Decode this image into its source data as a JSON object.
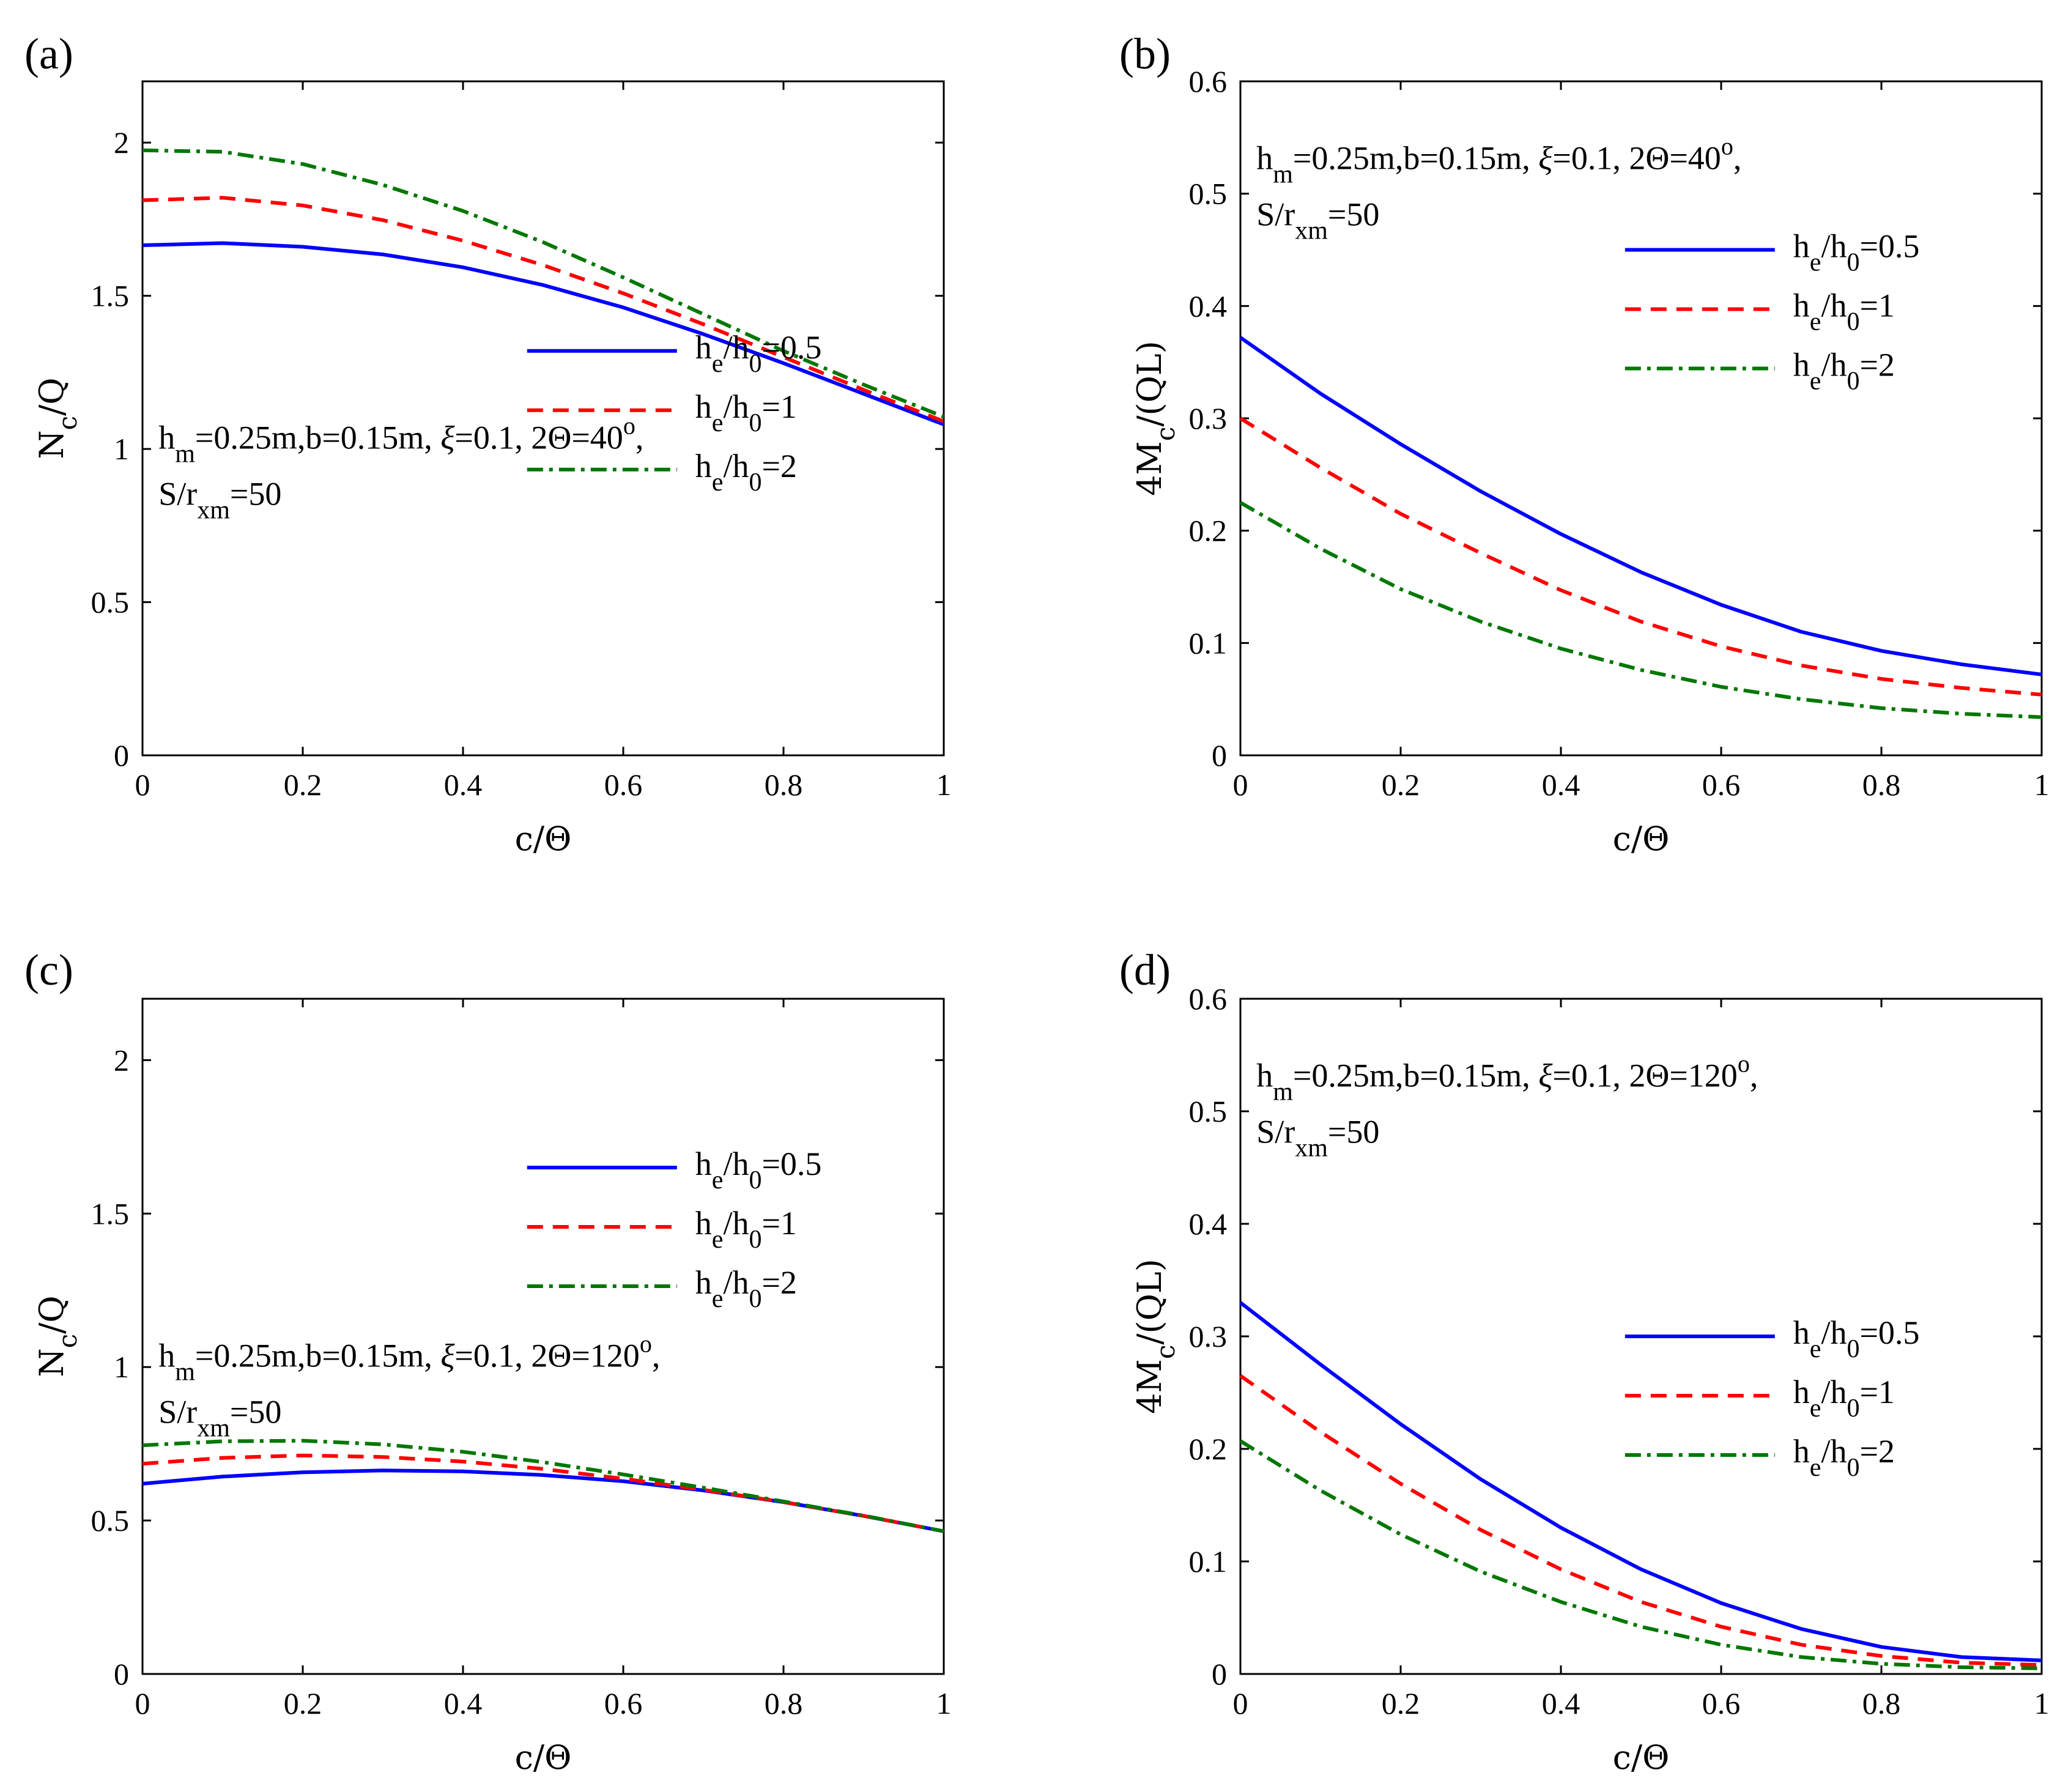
{
  "figure": {
    "description_free": true
  },
  "colors": {
    "s05": "#0000ff",
    "s1": "#ff0000",
    "s2": "#007700"
  },
  "chart_data": [
    {
      "panel": "(a)",
      "type": "line",
      "xlabel_main": "c",
      "xlabel_sub": "/Θ",
      "ylabel_main": "N",
      "ylabel_sub": "c",
      "ylabel_tail": "/Q",
      "xlim": [
        0,
        1
      ],
      "ylim": [
        0,
        2.2
      ],
      "xticks": [
        0,
        0.2,
        0.4,
        0.6,
        0.8,
        1
      ],
      "xtick_labels": [
        "0",
        "0.2",
        "0.4",
        "0.6",
        "0.8",
        "1"
      ],
      "yticks": [
        0,
        0.5,
        1,
        1.5,
        2
      ],
      "ytick_labels": [
        "0",
        "0.5",
        "1",
        "1.5",
        "2"
      ],
      "annotation": {
        "line1": [
          "h",
          "m",
          "=0.25m,b=0.15m, ",
          "ξ",
          "=0.1, 2Θ=40",
          "o",
          ","
        ],
        "line2": [
          "S/",
          "r",
          "xm",
          "=50"
        ],
        "position": "middle-left"
      },
      "legend_position": "middle-right",
      "x": [
        0,
        0.1,
        0.2,
        0.3,
        0.4,
        0.5,
        0.6,
        0.7,
        0.8,
        0.9,
        1.0
      ],
      "series": [
        {
          "name": "h_e/h_0=0.5",
          "legend": [
            "h",
            "e",
            "/h",
            "0",
            "=0.5"
          ],
          "style": "solid",
          "color_key": "s05",
          "values": [
            1.665,
            1.672,
            1.66,
            1.635,
            1.593,
            1.535,
            1.462,
            1.375,
            1.28,
            1.18,
            1.08
          ]
        },
        {
          "name": "h_e/h_0=1",
          "legend": [
            "h",
            "e",
            "/h",
            "0",
            "=1"
          ],
          "style": "dashed",
          "color_key": "s1",
          "values": [
            1.812,
            1.82,
            1.795,
            1.747,
            1.68,
            1.6,
            1.508,
            1.407,
            1.3,
            1.193,
            1.09
          ]
        },
        {
          "name": "h_e/h_0=2",
          "legend": [
            "h",
            "e",
            "/h",
            "0",
            "=2"
          ],
          "style": "dashdot",
          "color_key": "s2",
          "values": [
            1.975,
            1.97,
            1.93,
            1.862,
            1.777,
            1.675,
            1.56,
            1.44,
            1.32,
            1.21,
            1.105
          ]
        }
      ]
    },
    {
      "panel": "(b)",
      "type": "line",
      "xlabel_main": "c",
      "xlabel_sub": "/Θ",
      "ylabel_main": "4M",
      "ylabel_sub": "c",
      "ylabel_tail": "/(QL)",
      "xlim": [
        0,
        1
      ],
      "ylim": [
        0,
        0.6
      ],
      "xticks": [
        0,
        0.2,
        0.4,
        0.6,
        0.8,
        1
      ],
      "xtick_labels": [
        "0",
        "0.2",
        "0.4",
        "0.6",
        "0.8",
        "1"
      ],
      "yticks": [
        0,
        0.1,
        0.2,
        0.3,
        0.4,
        0.5,
        0.6
      ],
      "ytick_labels": [
        "0",
        "0.1",
        "0.2",
        "0.3",
        "0.4",
        "0.5",
        "0.6"
      ],
      "annotation": {
        "line1": [
          "h",
          "m",
          "=0.25m,b=0.15m, ",
          "ξ",
          "=0.1, 2Θ=40",
          "o",
          ","
        ],
        "line2": [
          "S/",
          "r",
          "xm",
          "=50"
        ],
        "position": "top-left"
      },
      "legend_position": "upper-right",
      "x": [
        0,
        0.1,
        0.2,
        0.3,
        0.4,
        0.5,
        0.6,
        0.7,
        0.8,
        0.9,
        1.0
      ],
      "series": [
        {
          "name": "h_e/h_0=0.5",
          "legend": [
            "h",
            "e",
            "/h",
            "0",
            "=0.5"
          ],
          "style": "solid",
          "color_key": "s05",
          "values": [
            0.372,
            0.322,
            0.277,
            0.235,
            0.197,
            0.163,
            0.134,
            0.11,
            0.093,
            0.081,
            0.072
          ]
        },
        {
          "name": "h_e/h_0=1",
          "legend": [
            "h",
            "e",
            "/h",
            "0",
            "=1"
          ],
          "style": "dashed",
          "color_key": "s1",
          "values": [
            0.3,
            0.256,
            0.215,
            0.18,
            0.147,
            0.119,
            0.097,
            0.08,
            0.068,
            0.06,
            0.054
          ]
        },
        {
          "name": "h_e/h_0=2",
          "legend": [
            "h",
            "e",
            "/h",
            "0",
            "=2"
          ],
          "style": "dashdot",
          "color_key": "s2",
          "values": [
            0.225,
            0.184,
            0.148,
            0.119,
            0.095,
            0.076,
            0.061,
            0.05,
            0.042,
            0.037,
            0.034
          ]
        }
      ]
    },
    {
      "panel": "(c)",
      "type": "line",
      "xlabel_main": "c",
      "xlabel_sub": "/Θ",
      "ylabel_main": "N",
      "ylabel_sub": "c",
      "ylabel_tail": "/Q",
      "xlim": [
        0,
        1
      ],
      "ylim": [
        0,
        2.2
      ],
      "xticks": [
        0,
        0.2,
        0.4,
        0.6,
        0.8,
        1
      ],
      "xtick_labels": [
        "0",
        "0.2",
        "0.4",
        "0.6",
        "0.8",
        "1"
      ],
      "yticks": [
        0,
        0.5,
        1,
        1.5,
        2
      ],
      "ytick_labels": [
        "0",
        "0.5",
        "1",
        "1.5",
        "2"
      ],
      "annotation": {
        "line1": [
          "h",
          "m",
          "=0.25m,b=0.15m, ",
          "ξ",
          "=0.1, 2Θ=120",
          "o",
          ","
        ],
        "line2": [
          "S/",
          "r",
          "xm",
          "=50"
        ],
        "position": "middle-left"
      },
      "legend_position": "upper-right",
      "x": [
        0,
        0.1,
        0.2,
        0.3,
        0.4,
        0.5,
        0.6,
        0.7,
        0.8,
        0.9,
        1.0
      ],
      "series": [
        {
          "name": "h_e/h_0=0.5",
          "legend": [
            "h",
            "e",
            "/h",
            "0",
            "=0.5"
          ],
          "style": "solid",
          "color_key": "s05",
          "values": [
            0.62,
            0.643,
            0.657,
            0.663,
            0.66,
            0.648,
            0.628,
            0.598,
            0.56,
            0.515,
            0.465
          ]
        },
        {
          "name": "h_e/h_0=1",
          "legend": [
            "h",
            "e",
            "/h",
            "0",
            "=1"
          ],
          "style": "dashed",
          "color_key": "s1",
          "values": [
            0.685,
            0.704,
            0.712,
            0.707,
            0.692,
            0.668,
            0.636,
            0.6,
            0.56,
            0.515,
            0.465
          ]
        },
        {
          "name": "h_e/h_0=2",
          "legend": [
            "h",
            "e",
            "/h",
            "0",
            "=2"
          ],
          "style": "dashdot",
          "color_key": "s2",
          "values": [
            0.745,
            0.758,
            0.76,
            0.748,
            0.724,
            0.69,
            0.65,
            0.607,
            0.562,
            0.516,
            0.465
          ]
        }
      ]
    },
    {
      "panel": "(d)",
      "type": "line",
      "xlabel_main": "c",
      "xlabel_sub": "/Θ",
      "ylabel_main": "4M",
      "ylabel_sub": "c",
      "ylabel_tail": "/(QL)",
      "xlim": [
        0,
        1
      ],
      "ylim": [
        0,
        0.6
      ],
      "xticks": [
        0,
        0.2,
        0.4,
        0.6,
        0.8,
        1
      ],
      "xtick_labels": [
        "0",
        "0.2",
        "0.4",
        "0.6",
        "0.8",
        "1"
      ],
      "yticks": [
        0,
        0.1,
        0.2,
        0.3,
        0.4,
        0.5,
        0.6
      ],
      "ytick_labels": [
        "0",
        "0.1",
        "0.2",
        "0.3",
        "0.4",
        "0.5",
        "0.6"
      ],
      "annotation": {
        "line1": [
          "h",
          "m",
          "=0.25m,b=0.15m, ",
          "ξ",
          "=0.1, 2Θ=120",
          "o",
          ","
        ],
        "line2": [
          "S/",
          "r",
          "xm",
          "=50"
        ],
        "position": "top-left"
      },
      "legend_position": "middle-right",
      "x": [
        0,
        0.1,
        0.2,
        0.3,
        0.4,
        0.5,
        0.6,
        0.7,
        0.8,
        0.9,
        1.0
      ],
      "series": [
        {
          "name": "h_e/h_0=0.5",
          "legend": [
            "h",
            "e",
            "/h",
            "0",
            "=0.5"
          ],
          "style": "solid",
          "color_key": "s05",
          "values": [
            0.33,
            0.275,
            0.222,
            0.173,
            0.13,
            0.093,
            0.063,
            0.04,
            0.024,
            0.015,
            0.012
          ]
        },
        {
          "name": "h_e/h_0=1",
          "legend": [
            "h",
            "e",
            "/h",
            "0",
            "=1"
          ],
          "style": "dashed",
          "color_key": "s1",
          "values": [
            0.265,
            0.215,
            0.169,
            0.128,
            0.093,
            0.064,
            0.042,
            0.026,
            0.016,
            0.01,
            0.008
          ]
        },
        {
          "name": "h_e/h_0=2",
          "legend": [
            "h",
            "e",
            "/h",
            "0",
            "=2"
          ],
          "style": "dashdot",
          "color_key": "s2",
          "values": [
            0.207,
            0.163,
            0.124,
            0.091,
            0.064,
            0.042,
            0.026,
            0.015,
            0.009,
            0.006,
            0.005
          ]
        }
      ]
    }
  ]
}
